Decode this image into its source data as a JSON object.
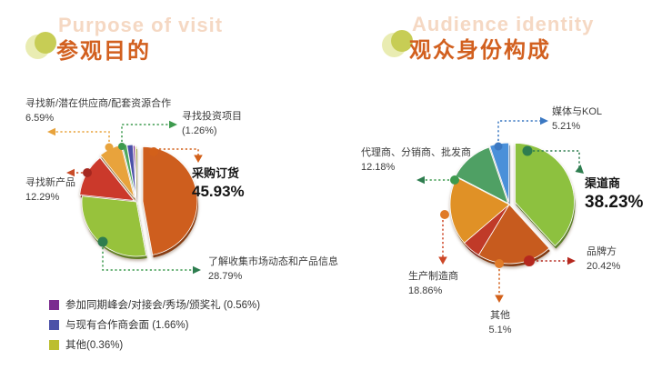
{
  "slide": {
    "background": "#ffffff",
    "accent": "#d2601f"
  },
  "chart_data": [
    {
      "type": "pie",
      "title": "参观目的",
      "title_en": "Purpose of visit",
      "legend_position": "bottom-left",
      "slices": [
        {
          "label": "采购订货",
          "value": 45.93,
          "display": "45.93%",
          "color": "#CE5E1E",
          "explode": 7,
          "emphasis": true
        },
        {
          "label": "了解收集市场动态和产品信息",
          "value": 28.79,
          "display": "28.79%",
          "color": "#97C23C",
          "explode": 0
        },
        {
          "label": "寻找新产品",
          "value": 12.29,
          "display": "12.29%",
          "color": "#CB392B",
          "explode": 3
        },
        {
          "label": "寻找新/潜在供应商/配套资源合作",
          "value": 6.59,
          "display": "6.59%",
          "color": "#E8A33C",
          "explode": 5
        },
        {
          "label": "寻找投资项目",
          "value": 1.26,
          "display": "(1.26%)",
          "color": "#4FA85B",
          "explode": 4
        },
        {
          "label": "与现有合作商会面",
          "value": 1.66,
          "display": "(1.66%)",
          "color": "#4C51A8",
          "explode": 3
        },
        {
          "label": "参加同期峰会/对接会/秀场/颁奖礼",
          "value": 0.56,
          "display": "(0.56%)",
          "color": "#7B2C8F",
          "explode": 2
        },
        {
          "label": "其他",
          "value": 0.36,
          "display": "(0.36%)",
          "color": "#BCBE2F",
          "explode": 1
        }
      ],
      "legend": [
        {
          "text": "参加同期峰会/对接会/秀场/颁奖礼 (0.56%)",
          "color": "#7B2C8F"
        },
        {
          "text": "与现有合作商会面 (1.66%)",
          "color": "#4C51A8"
        },
        {
          "text": "其他(0.36%)",
          "color": "#BCBE2F"
        }
      ]
    },
    {
      "type": "pie",
      "title": "观众身份构成",
      "title_en": "Audience identity",
      "slices": [
        {
          "label": "渠道商",
          "value": 38.23,
          "display": "38.23%",
          "color": "#8DC13F",
          "explode": 7,
          "emphasis": true
        },
        {
          "label": "品牌方",
          "value": 20.42,
          "display": "20.42%",
          "color": "#C75B1E",
          "explode": 0
        },
        {
          "label": "其他",
          "value": 5.1,
          "display": "5.1%",
          "color": "#C03A28",
          "explode": 0
        },
        {
          "label": "生产制造商",
          "value": 18.86,
          "display": "18.86%",
          "color": "#E09126",
          "explode": 0
        },
        {
          "label": "代理商、分销商、批发商",
          "value": 12.18,
          "display": "12.18%",
          "color": "#4FA064",
          "explode": 2
        },
        {
          "label": "媒体与KOL",
          "value": 5.21,
          "display": "5.21%",
          "color": "#4A90D9",
          "explode": 3
        }
      ]
    }
  ]
}
